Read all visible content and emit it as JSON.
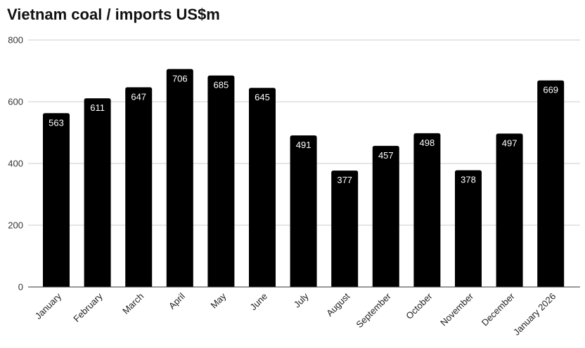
{
  "chart_data": {
    "type": "bar",
    "title": "Vietnam coal / imports US$m",
    "xlabel": "",
    "ylabel": "",
    "categories": [
      "January",
      "February",
      "March",
      "April",
      "May",
      "June",
      "July",
      "August",
      "September",
      "October",
      "November",
      "December",
      "January 2026"
    ],
    "values": [
      563,
      611,
      647,
      706,
      685,
      645,
      491,
      377,
      457,
      498,
      378,
      497,
      669
    ],
    "ylim": [
      0,
      800
    ],
    "yticks": [
      0,
      200,
      400,
      600,
      800
    ],
    "grid": true,
    "legend": "none",
    "bar_color": "#000000",
    "label_color": "#ffffff",
    "grid_color": "#cccccc"
  }
}
